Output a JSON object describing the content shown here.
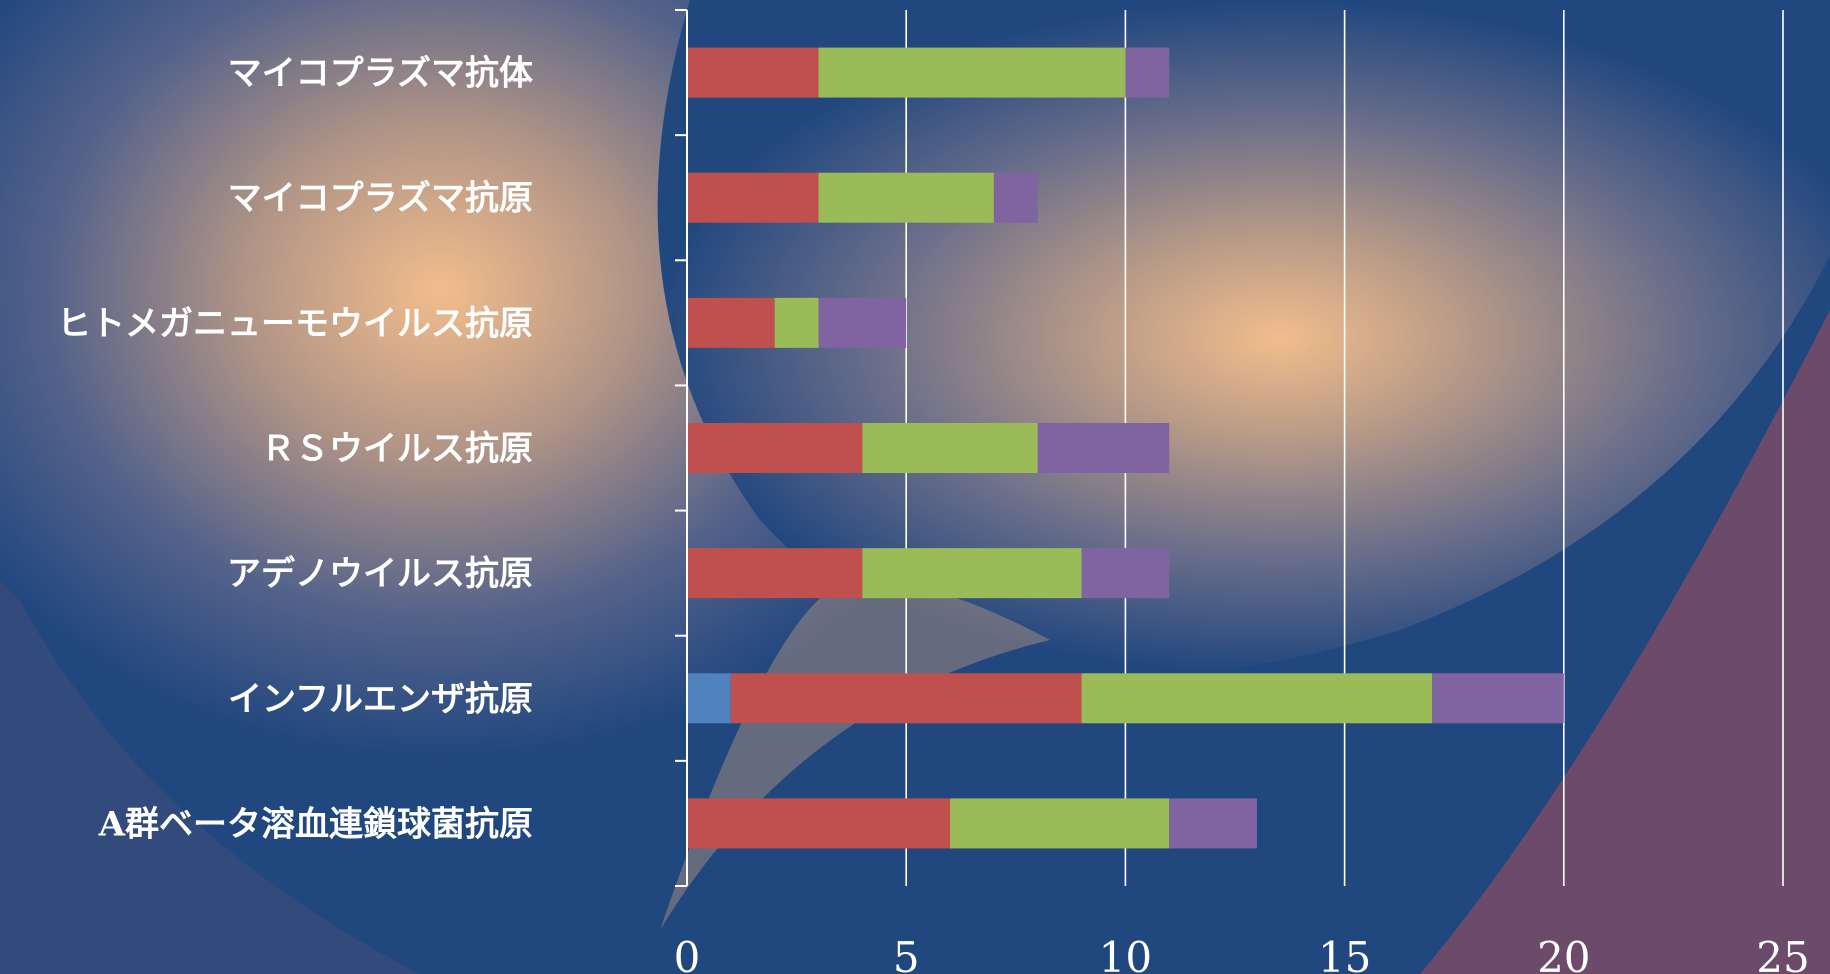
{
  "chart_data": {
    "type": "bar",
    "orientation": "horizontal",
    "stacked": true,
    "categories": [
      "マイコプラズマ抗体",
      "マイコプラズマ抗原",
      "ヒトメガニューモウイルス抗原",
      "ＲＳウイルス抗原",
      "アデノウイルス抗原",
      "インフルエンザ抗原",
      "A群ベータ溶血連鎖球菌抗原"
    ],
    "series": [
      {
        "color": "#4f81bd",
        "values": [
          0,
          0,
          0,
          0,
          0,
          1,
          0
        ]
      },
      {
        "color": "#c0504d",
        "values": [
          3,
          3,
          2,
          4,
          4,
          8,
          6
        ]
      },
      {
        "color": "#9bbb59",
        "values": [
          7,
          4,
          1,
          4,
          5,
          8,
          5
        ]
      },
      {
        "color": "#8064a2",
        "values": [
          1,
          1,
          2,
          3,
          2,
          3,
          2
        ]
      }
    ],
    "xlim": [
      0,
      25
    ],
    "xticks": [
      "0",
      "5",
      "10",
      "15",
      "20",
      "25"
    ],
    "grid": "vertical",
    "legend": "none"
  }
}
